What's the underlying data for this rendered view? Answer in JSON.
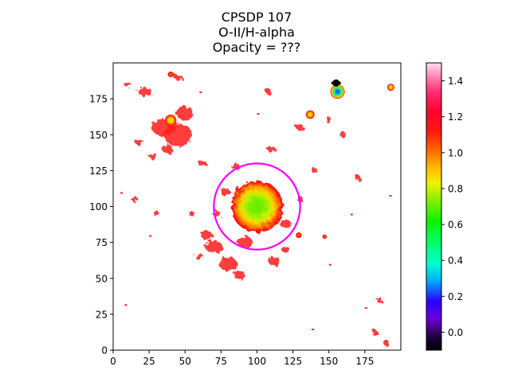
{
  "chart_data": {
    "type": "heatmap",
    "title": "CPSDP 107",
    "subtitle_lines": [
      "O-II/H-alpha",
      "Opacity = ???"
    ],
    "xlabel": "",
    "ylabel": "",
    "xlim": [
      0,
      200
    ],
    "ylim": [
      0,
      200
    ],
    "x_ticks": [
      0,
      25,
      50,
      75,
      100,
      125,
      150,
      175
    ],
    "y_ticks": [
      0,
      25,
      50,
      75,
      100,
      125,
      150,
      175
    ],
    "colorbar": {
      "range": [
        -0.1,
        1.5
      ],
      "ticks": [
        0.0,
        0.2,
        0.4,
        0.6,
        0.8,
        1.0,
        1.2,
        1.4
      ],
      "tick_labels": [
        "0.0",
        "0.2",
        "0.4",
        "0.6",
        "0.8",
        "1.0",
        "1.2",
        "1.4"
      ],
      "colormap": "gist_ncar-like (black → purple → blue → cyan → green → yellow → orange → red → pink)"
    },
    "sources": [
      {
        "name": "central-nebula",
        "cx": 100,
        "cy": 100,
        "r": 18,
        "peak": 0.5,
        "edge": 1.1
      },
      {
        "name": "knot-top-left",
        "cx": 40,
        "cy": 160,
        "r": 4,
        "peak": 0.95,
        "edge": 1.2
      },
      {
        "name": "knot-upper-left-2",
        "cx": 40,
        "cy": 192,
        "r": 2,
        "peak": 1.0,
        "edge": 1.2
      },
      {
        "name": "star-top-right",
        "cx": 156,
        "cy": 180,
        "r": 5,
        "peak": 0.15,
        "edge": 1.1
      },
      {
        "name": "star-right-edge",
        "cx": 193,
        "cy": 183,
        "r": 2.5,
        "peak": 0.95,
        "edge": 1.2
      },
      {
        "name": "star-mid-right",
        "cx": 137,
        "cy": 164,
        "r": 3,
        "peak": 0.85,
        "edge": 1.1
      },
      {
        "name": "knot-right-low",
        "cx": 129,
        "cy": 80,
        "r": 2,
        "peak": 1.0,
        "edge": 1.2
      },
      {
        "name": "knot-far-right-low",
        "cx": 147,
        "cy": 79,
        "r": 1.5,
        "peak": 1.0,
        "edge": 1.2
      }
    ],
    "aperture_circle": {
      "cx": 100,
      "cy": 100,
      "r": 30,
      "color": "#ff00ff"
    },
    "masked_marker": {
      "x": 155,
      "y": 186,
      "color": "#000000"
    },
    "colors": {
      "nebula_edge": "#ff1a1a",
      "nebula_core": "#4cf000",
      "aperture": "#ff00ff"
    }
  }
}
